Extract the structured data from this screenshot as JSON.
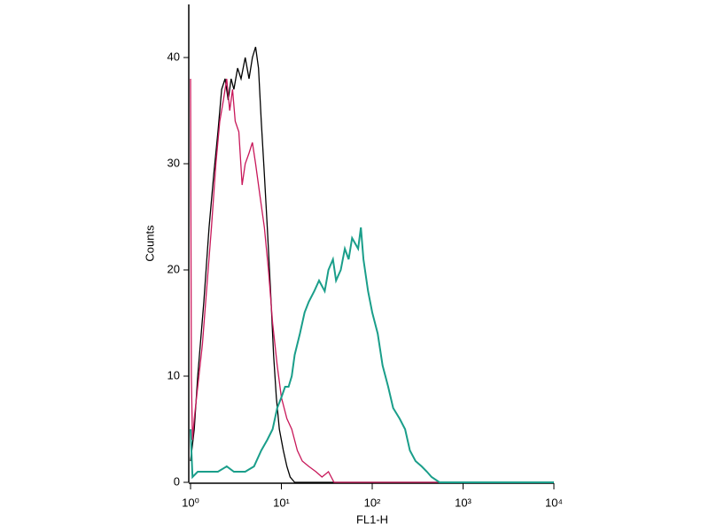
{
  "chart_data": {
    "type": "line",
    "x_label": "FL1-H",
    "y_label": "Counts",
    "xscale": "log",
    "xlim": [
      1,
      10000
    ],
    "xticks": [
      {
        "value": 1,
        "label": "10⁰"
      },
      {
        "value": 10,
        "label": "10¹"
      },
      {
        "value": 100,
        "label": "10²"
      },
      {
        "value": 1000,
        "label": "10³"
      },
      {
        "value": 10000,
        "label": "10⁴"
      }
    ],
    "ylim": [
      0,
      45
    ],
    "yticks": [
      0,
      10,
      20,
      30,
      40
    ],
    "grid": false,
    "series": [
      {
        "color": "#000000",
        "x": [
          1,
          1.1,
          1.2,
          1.4,
          1.6,
          1.8,
          2.0,
          2.2,
          2.4,
          2.6,
          2.8,
          3.0,
          3.3,
          3.6,
          4.0,
          4.4,
          4.8,
          5.2,
          5.6,
          6.0,
          6.5,
          7.0,
          7.6,
          8.2,
          8.8,
          9.5,
          10.5,
          11.5,
          12.5,
          14,
          10000
        ],
        "values": [
          2,
          5,
          10,
          17,
          24,
          29,
          33,
          37,
          38,
          36,
          38,
          37,
          39,
          38,
          40,
          38,
          40,
          41,
          39,
          34,
          29,
          24,
          18,
          12,
          8,
          5,
          3,
          1.5,
          0.5,
          0,
          0
        ]
      },
      {
        "color": "#c8185a",
        "x": [
          1,
          1.02,
          1.05,
          1.1,
          1.2,
          1.35,
          1.5,
          1.7,
          1.9,
          2.1,
          2.3,
          2.5,
          2.7,
          2.9,
          3.1,
          3.4,
          3.7,
          4.0,
          4.4,
          4.8,
          5.2,
          5.8,
          6.5,
          7.2,
          8.0,
          9.0,
          10,
          11.5,
          13,
          15,
          17,
          20,
          24,
          28,
          33,
          38,
          10000
        ],
        "values": [
          38,
          10,
          4,
          6,
          9,
          13,
          18,
          24,
          30,
          34,
          36,
          38,
          35,
          37,
          34,
          33,
          28,
          30,
          31,
          32,
          30,
          27,
          24,
          20,
          15,
          11,
          8,
          6,
          5,
          3,
          2,
          1.5,
          1,
          0.5,
          1,
          0,
          0
        ]
      },
      {
        "color": "#1a9e8a",
        "x": [
          1,
          1.05,
          1.2,
          1.5,
          2,
          2.5,
          3,
          4,
          5,
          6,
          7,
          8,
          9,
          10,
          11,
          12,
          13,
          14,
          16,
          18,
          20,
          23,
          26,
          30,
          33,
          37,
          40,
          45,
          50,
          55,
          60,
          70,
          75,
          80,
          90,
          100,
          115,
          130,
          150,
          170,
          200,
          230,
          260,
          300,
          350,
          400,
          450,
          550,
          10000
        ],
        "values": [
          5,
          0.5,
          1,
          1,
          1,
          1.5,
          1,
          1,
          1.5,
          3,
          4,
          5,
          7,
          8,
          9,
          9,
          10,
          12,
          14,
          16,
          17,
          18,
          19,
          18,
          20,
          21,
          19,
          20,
          22,
          21,
          23,
          22,
          24,
          21,
          18,
          16,
          14,
          11,
          9,
          7,
          6,
          5,
          3,
          2,
          1.5,
          1,
          0.5,
          0,
          0
        ]
      }
    ]
  }
}
